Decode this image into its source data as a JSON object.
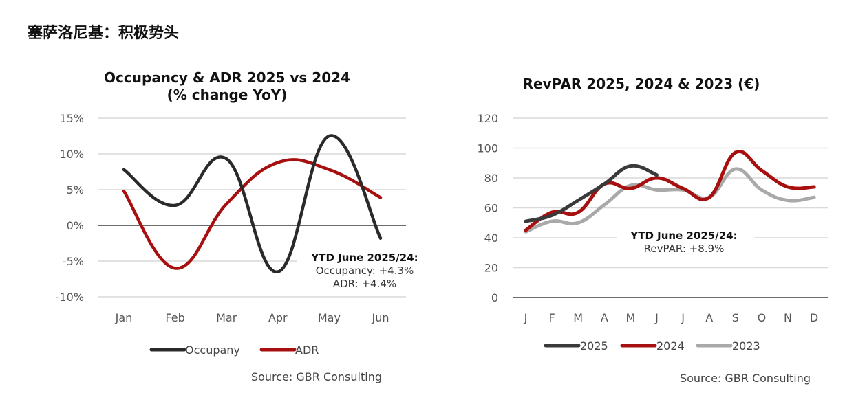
{
  "page": {
    "title": "塞萨洛尼基：积极势头"
  },
  "colors": {
    "occupancy": "#2a2a2a",
    "adr": "#a80f0f",
    "y2025": "#3a3a3a",
    "y2024": "#a80f0f",
    "y2023": "#a9a9a9",
    "grid": "#d9d9d9",
    "zero": "#6b6b6b"
  },
  "chart_data": [
    {
      "type": "line",
      "title": "Occupancy & ADR 2025 vs 2024",
      "subtitle": "(% change YoY)",
      "xlabel": "",
      "ylabel": "",
      "categories": [
        "Jan",
        "Feb",
        "Mar",
        "Apr",
        "May",
        "Jun"
      ],
      "ylim": [
        -10,
        15
      ],
      "yticks": [
        15,
        10,
        5,
        0,
        -5,
        -10
      ],
      "ytick_labels": [
        "15%",
        "10%",
        "5%",
        "0%",
        "-5%",
        "-10%"
      ],
      "grid": true,
      "legend": "bottom",
      "series": [
        {
          "name": "Occupany",
          "color_key": "occupancy",
          "values": [
            7.8,
            2.8,
            9.3,
            -6.5,
            12.5,
            -1.8
          ]
        },
        {
          "name": "ADR",
          "color_key": "adr",
          "values": [
            4.8,
            -6.0,
            3.0,
            8.8,
            7.8,
            3.9
          ]
        }
      ],
      "annotation": {
        "heading": "YTD June 2025/24:",
        "lines": [
          "Occupancy: +4.3%",
          "ADR: +4.4%"
        ]
      },
      "source": "Source: GBR Consulting"
    },
    {
      "type": "line",
      "title": "RevPAR 2025, 2024 & 2023 (€)",
      "xlabel": "",
      "ylabel": "",
      "categories": [
        "J",
        "F",
        "M",
        "A",
        "M",
        "J",
        "J",
        "A",
        "S",
        "O",
        "N",
        "D"
      ],
      "ylim": [
        0,
        120
      ],
      "yticks": [
        120,
        100,
        80,
        60,
        40,
        20,
        0
      ],
      "ytick_labels": [
        "120",
        "100",
        "80",
        "60",
        "40",
        "20",
        "0"
      ],
      "grid": true,
      "legend": "bottom",
      "series": [
        {
          "name": "2025",
          "color_key": "y2025",
          "values": [
            51,
            55,
            65,
            76,
            88,
            82
          ]
        },
        {
          "name": "2024",
          "color_key": "y2024",
          "values": [
            45,
            57,
            57,
            76,
            73,
            80,
            73,
            67,
            97,
            85,
            74,
            74
          ]
        },
        {
          "name": "2023",
          "color_key": "y2023",
          "values": [
            44,
            51,
            50,
            62,
            75,
            72,
            72,
            67,
            86,
            72,
            65,
            67
          ]
        }
      ],
      "annotation": {
        "heading": "YTD June 2025/24:",
        "lines": [
          "RevPAR: +8.9%"
        ]
      },
      "source": "Source: GBR Consulting"
    }
  ]
}
